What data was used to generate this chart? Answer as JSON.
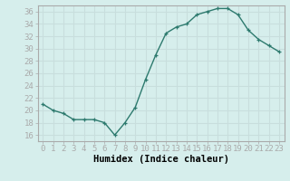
{
  "x": [
    0,
    1,
    2,
    3,
    4,
    5,
    6,
    7,
    8,
    9,
    10,
    11,
    12,
    13,
    14,
    15,
    16,
    17,
    18,
    19,
    20,
    21,
    22,
    23
  ],
  "y": [
    21,
    20,
    19.5,
    18.5,
    18.5,
    18.5,
    18,
    16,
    18,
    20.5,
    25,
    29,
    32.5,
    33.5,
    34,
    35.5,
    36,
    36.5,
    36.5,
    35.5,
    33,
    31.5,
    30.5,
    29.5
  ],
  "line_color": "#2d7a6e",
  "marker": "+",
  "bg_color": "#d6eeec",
  "grid_color": "#c8dedd",
  "xlabel": "Humidex (Indice chaleur)",
  "ylim": [
    15,
    37
  ],
  "xlim": [
    -0.5,
    23.5
  ],
  "yticks": [
    16,
    18,
    20,
    22,
    24,
    26,
    28,
    30,
    32,
    34,
    36
  ],
  "xticks": [
    0,
    1,
    2,
    3,
    4,
    5,
    6,
    7,
    8,
    9,
    10,
    11,
    12,
    13,
    14,
    15,
    16,
    17,
    18,
    19,
    20,
    21,
    22,
    23
  ],
  "xtick_labels": [
    "0",
    "1",
    "2",
    "3",
    "4",
    "5",
    "6",
    "7",
    "8",
    "9",
    "10",
    "11",
    "12",
    "13",
    "14",
    "15",
    "16",
    "17",
    "18",
    "19",
    "20",
    "21",
    "22",
    "23"
  ],
  "xlabel_fontsize": 7.5,
  "tick_fontsize": 6.5,
  "linewidth": 1.0,
  "markersize": 3.5,
  "spine_color": "#aaaaaa"
}
